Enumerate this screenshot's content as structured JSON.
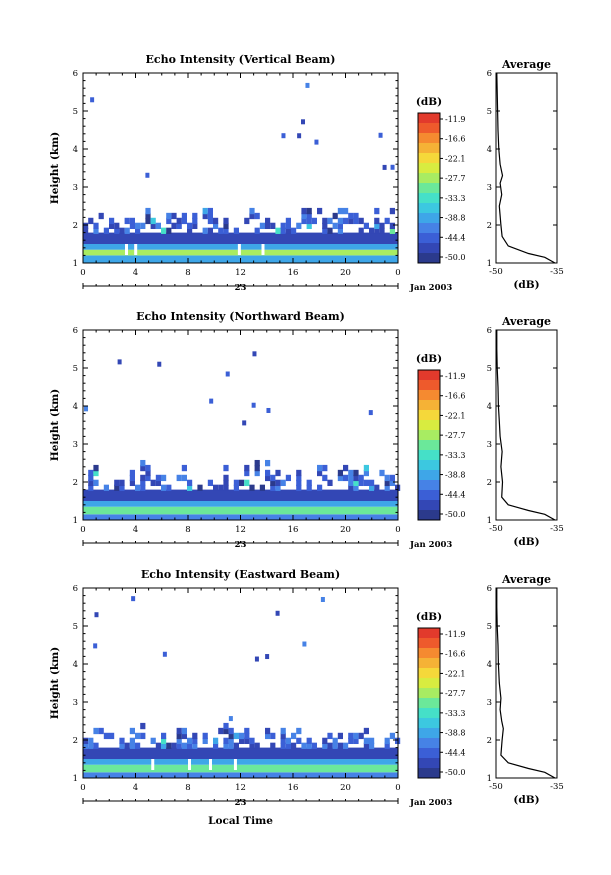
{
  "figure": {
    "date_label": "Jan 2003",
    "day_label": "23",
    "x_axis_label": "Local Time",
    "colorbar_unit": "(dB)",
    "average_title": "Average",
    "average_unit": "(dB)"
  },
  "chart_data": [
    {
      "type": "heatmap",
      "title": "Echo Intensity (Vertical Beam)",
      "ylabel": "Height (km)",
      "xlabel": "Local Time",
      "x_ticks": [
        "0",
        "4",
        "8",
        "12",
        "16",
        "20",
        "0"
      ],
      "y_ticks": [
        "1",
        "2",
        "3",
        "4",
        "5",
        "6"
      ],
      "xlim": [
        0,
        24
      ],
      "ylim": [
        1,
        6
      ],
      "colorbar": {
        "unit": "(dB)",
        "ticks": [
          "-11.9",
          "-16.6",
          "-22.1",
          "-27.7",
          "-33.3",
          "-38.8",
          "-44.4",
          "-50.0"
        ]
      },
      "layers": [
        {
          "from_km": 1.0,
          "to_km": 1.2,
          "level_db": -40
        },
        {
          "from_km": 1.2,
          "to_km": 1.35,
          "level_db": -27
        },
        {
          "from_km": 1.35,
          "to_km": 1.5,
          "level_db": -38
        },
        {
          "from_km": 1.5,
          "to_km": 1.8,
          "level_db": -48
        }
      ],
      "cloud_top_km": 2.2,
      "gaps_hours": [
        3.2,
        3.9,
        11.8,
        13.6
      ],
      "average_profile": {
        "x_ticks": [
          "-50",
          "-35"
        ],
        "xlim": [
          -50,
          -35
        ],
        "points": [
          [
            -35.5,
            1.0
          ],
          [
            -38,
            1.15
          ],
          [
            -42,
            1.25
          ],
          [
            -47,
            1.45
          ],
          [
            -48.5,
            1.7
          ],
          [
            -48.8,
            2.0
          ],
          [
            -49.2,
            2.5
          ],
          [
            -48.6,
            2.8
          ],
          [
            -49,
            3.1
          ],
          [
            -48.4,
            3.3
          ],
          [
            -49,
            3.6
          ],
          [
            -49.3,
            4.0
          ],
          [
            -49.5,
            4.5
          ],
          [
            -49.6,
            5.0
          ],
          [
            -49.7,
            5.5
          ],
          [
            -49.8,
            6.0
          ]
        ]
      }
    },
    {
      "type": "heatmap",
      "title": "Echo Intensity (Northward Beam)",
      "ylabel": "Height (km)",
      "xlabel": "Local Time",
      "x_ticks": [
        "0",
        "4",
        "8",
        "12",
        "16",
        "20",
        "0"
      ],
      "y_ticks": [
        "1",
        "2",
        "3",
        "4",
        "5",
        "6"
      ],
      "xlim": [
        0,
        24
      ],
      "ylim": [
        1,
        6
      ],
      "colorbar": {
        "unit": "(dB)",
        "ticks": [
          "-11.9",
          "-16.6",
          "-22.1",
          "-27.7",
          "-33.3",
          "-38.8",
          "-44.4",
          "-50.0"
        ]
      },
      "layers": [
        {
          "from_km": 1.0,
          "to_km": 1.15,
          "level_db": -42
        },
        {
          "from_km": 1.15,
          "to_km": 1.35,
          "level_db": -30
        },
        {
          "from_km": 1.35,
          "to_km": 1.5,
          "level_db": -38
        },
        {
          "from_km": 1.5,
          "to_km": 1.8,
          "level_db": -48
        }
      ],
      "cloud_top_km": 2.3,
      "gaps_hours": [],
      "average_profile": {
        "x_ticks": [
          "-50",
          "-35"
        ],
        "xlim": [
          -50,
          -35
        ],
        "points": [
          [
            -35.5,
            1.0
          ],
          [
            -38,
            1.15
          ],
          [
            -42,
            1.25
          ],
          [
            -47,
            1.4
          ],
          [
            -48.6,
            1.6
          ],
          [
            -48.4,
            2.0
          ],
          [
            -48.8,
            2.4
          ],
          [
            -48.5,
            2.8
          ],
          [
            -49,
            3.2
          ],
          [
            -49.2,
            3.6
          ],
          [
            -49.4,
            4.0
          ],
          [
            -49.5,
            4.5
          ],
          [
            -49.7,
            5.0
          ],
          [
            -49.8,
            5.5
          ],
          [
            -49.8,
            6.0
          ]
        ]
      }
    },
    {
      "type": "heatmap",
      "title": "Echo Intensity (Eastward Beam)",
      "ylabel": "Height (km)",
      "xlabel": "Local Time",
      "x_ticks": [
        "0",
        "4",
        "8",
        "12",
        "16",
        "20",
        "0"
      ],
      "y_ticks": [
        "1",
        "2",
        "3",
        "4",
        "5",
        "6"
      ],
      "xlim": [
        0,
        24
      ],
      "ylim": [
        1,
        6
      ],
      "colorbar": {
        "unit": "(dB)",
        "ticks": [
          "-11.9",
          "-16.6",
          "-22.1",
          "-27.7",
          "-33.3",
          "-38.8",
          "-44.4",
          "-50.0"
        ]
      },
      "layers": [
        {
          "from_km": 1.0,
          "to_km": 1.15,
          "level_db": -42
        },
        {
          "from_km": 1.15,
          "to_km": 1.35,
          "level_db": -30
        },
        {
          "from_km": 1.35,
          "to_km": 1.5,
          "level_db": -38
        },
        {
          "from_km": 1.5,
          "to_km": 1.8,
          "level_db": -48
        }
      ],
      "cloud_top_km": 2.2,
      "gaps_hours": [
        5.2,
        8.0,
        9.6,
        11.5
      ],
      "average_profile": {
        "x_ticks": [
          "-50",
          "-35"
        ],
        "xlim": [
          -50,
          -35
        ],
        "points": [
          [
            -35.5,
            1.0
          ],
          [
            -38,
            1.15
          ],
          [
            -42,
            1.25
          ],
          [
            -47,
            1.4
          ],
          [
            -48.8,
            1.6
          ],
          [
            -48.5,
            2.0
          ],
          [
            -48.2,
            2.3
          ],
          [
            -48.6,
            2.5
          ],
          [
            -49,
            2.8
          ],
          [
            -48.8,
            3.1
          ],
          [
            -49.2,
            3.5
          ],
          [
            -49.4,
            4.0
          ],
          [
            -49.5,
            4.5
          ],
          [
            -49.7,
            5.0
          ],
          [
            -49.8,
            5.5
          ],
          [
            -49.8,
            6.0
          ]
        ]
      }
    }
  ]
}
